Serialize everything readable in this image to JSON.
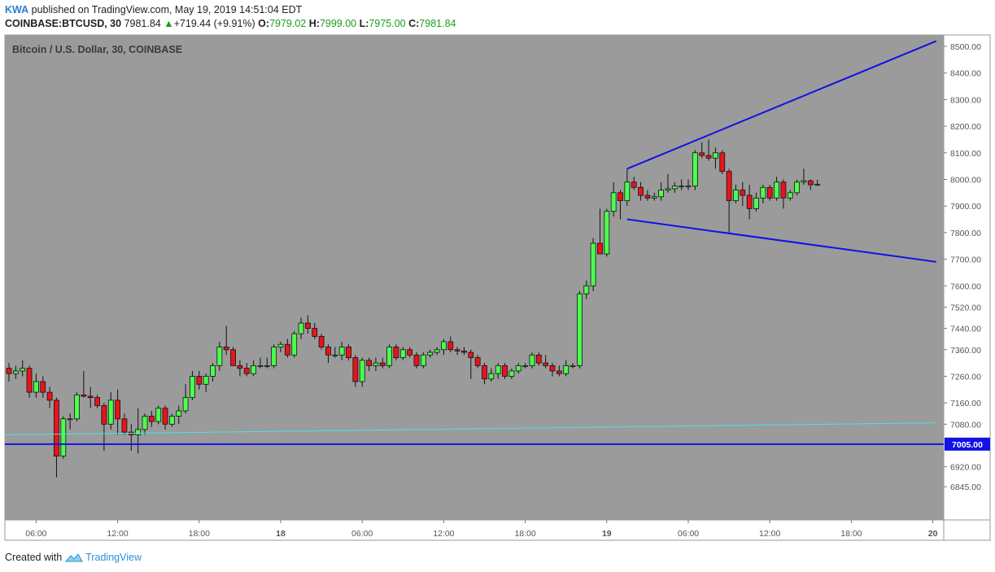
{
  "header": {
    "author": "KWA",
    "published_text": "published on TradingView.com, May 19, 2019 14:51:04 EDT",
    "symbol": "COINBASE:BTCUSD, 30",
    "last": "7981.84",
    "change": "+719.44 (+9.91%)",
    "o_label": "O:",
    "o_value": "7979.02",
    "h_label": "H:",
    "h_value": "7999.00",
    "l_label": "L:",
    "l_value": "7975.00",
    "c_label": "C:",
    "c_value": "7981.84"
  },
  "footer": {
    "created_with": "Created with",
    "brand": "TradingView"
  },
  "colors": {
    "pane_bg": "#9b9b9b",
    "up_candle": "#4cff4c",
    "down_candle": "#e8141c",
    "channel_line": "#1212e6",
    "support_line": "#1212e6",
    "trend_line": "#4fe0e0",
    "price_tag_bg": "#1212e6"
  },
  "chart_data": {
    "type": "candlestick",
    "title": "Bitcoin / U.S. Dollar, 30, COINBASE",
    "interval_minutes": 30,
    "ylim": [
      6820,
      8520
    ],
    "y_ticks": [
      8500,
      8400,
      8300,
      8200,
      8100,
      8000,
      7900,
      7800,
      7700,
      7600,
      7520,
      7440,
      7360,
      7260,
      7160,
      7080,
      6920,
      6845
    ],
    "y_tick_labels": [
      "8500.00",
      "8400.00",
      "8300.00",
      "8200.00",
      "8100.00",
      "8000.00",
      "7900.00",
      "7800.00",
      "7700.00",
      "7600.00",
      "7520.00",
      "7440.00",
      "7360.00",
      "7260.00",
      "7160.00",
      "7080.00",
      "6920.00",
      "6845.00"
    ],
    "x_tick_labels": [
      "06:00",
      "12:00",
      "18:00",
      "18",
      "06:00",
      "12:00",
      "18:00",
      "19",
      "06:00",
      "12:00",
      "18:00",
      "20"
    ],
    "x_tick_index": [
      4,
      16,
      28,
      40,
      52,
      64,
      76,
      88,
      100,
      112,
      124,
      136
    ],
    "candles": [
      {
        "o": 7290,
        "h": 7310,
        "l": 7240,
        "c": 7270
      },
      {
        "o": 7270,
        "h": 7300,
        "l": 7250,
        "c": 7280
      },
      {
        "o": 7280,
        "h": 7320,
        "l": 7260,
        "c": 7290
      },
      {
        "o": 7290,
        "h": 7300,
        "l": 7180,
        "c": 7200
      },
      {
        "o": 7200,
        "h": 7270,
        "l": 7180,
        "c": 7240
      },
      {
        "o": 7240,
        "h": 7260,
        "l": 7180,
        "c": 7200
      },
      {
        "o": 7200,
        "h": 7220,
        "l": 7140,
        "c": 7170
      },
      {
        "o": 7170,
        "h": 7180,
        "l": 6880,
        "c": 6960
      },
      {
        "o": 6960,
        "h": 7110,
        "l": 6950,
        "c": 7100
      },
      {
        "o": 7100,
        "h": 7120,
        "l": 7060,
        "c": 7100
      },
      {
        "o": 7100,
        "h": 7200,
        "l": 7090,
        "c": 7190
      },
      {
        "o": 7190,
        "h": 7280,
        "l": 7180,
        "c": 7185
      },
      {
        "o": 7185,
        "h": 7220,
        "l": 7140,
        "c": 7180
      },
      {
        "o": 7180,
        "h": 7190,
        "l": 7140,
        "c": 7150
      },
      {
        "o": 7150,
        "h": 7160,
        "l": 6980,
        "c": 7080
      },
      {
        "o": 7080,
        "h": 7200,
        "l": 7060,
        "c": 7170
      },
      {
        "o": 7170,
        "h": 7210,
        "l": 7040,
        "c": 7100
      },
      {
        "o": 7100,
        "h": 7120,
        "l": 7040,
        "c": 7050
      },
      {
        "o": 7050,
        "h": 7080,
        "l": 6980,
        "c": 7040
      },
      {
        "o": 7040,
        "h": 7140,
        "l": 6970,
        "c": 7060
      },
      {
        "o": 7060,
        "h": 7120,
        "l": 7040,
        "c": 7110
      },
      {
        "o": 7110,
        "h": 7130,
        "l": 7070,
        "c": 7090
      },
      {
        "o": 7090,
        "h": 7150,
        "l": 7080,
        "c": 7140
      },
      {
        "o": 7140,
        "h": 7150,
        "l": 7060,
        "c": 7080
      },
      {
        "o": 7080,
        "h": 7120,
        "l": 7070,
        "c": 7110
      },
      {
        "o": 7110,
        "h": 7150,
        "l": 7080,
        "c": 7130
      },
      {
        "o": 7130,
        "h": 7230,
        "l": 7120,
        "c": 7180
      },
      {
        "o": 7180,
        "h": 7280,
        "l": 7170,
        "c": 7260
      },
      {
        "o": 7260,
        "h": 7280,
        "l": 7210,
        "c": 7230
      },
      {
        "o": 7230,
        "h": 7270,
        "l": 7200,
        "c": 7260
      },
      {
        "o": 7260,
        "h": 7310,
        "l": 7240,
        "c": 7300
      },
      {
        "o": 7300,
        "h": 7390,
        "l": 7280,
        "c": 7370
      },
      {
        "o": 7370,
        "h": 7450,
        "l": 7340,
        "c": 7360
      },
      {
        "o": 7360,
        "h": 7370,
        "l": 7300,
        "c": 7300
      },
      {
        "o": 7300,
        "h": 7320,
        "l": 7260,
        "c": 7290
      },
      {
        "o": 7290,
        "h": 7310,
        "l": 7260,
        "c": 7270
      },
      {
        "o": 7270,
        "h": 7320,
        "l": 7260,
        "c": 7300
      },
      {
        "o": 7300,
        "h": 7330,
        "l": 7290,
        "c": 7300
      },
      {
        "o": 7300,
        "h": 7330,
        "l": 7290,
        "c": 7300
      },
      {
        "o": 7300,
        "h": 7380,
        "l": 7290,
        "c": 7370
      },
      {
        "o": 7370,
        "h": 7390,
        "l": 7350,
        "c": 7380
      },
      {
        "o": 7380,
        "h": 7400,
        "l": 7330,
        "c": 7340
      },
      {
        "o": 7340,
        "h": 7430,
        "l": 7330,
        "c": 7420
      },
      {
        "o": 7420,
        "h": 7480,
        "l": 7400,
        "c": 7460
      },
      {
        "o": 7460,
        "h": 7490,
        "l": 7420,
        "c": 7440
      },
      {
        "o": 7440,
        "h": 7460,
        "l": 7400,
        "c": 7410
      },
      {
        "o": 7410,
        "h": 7420,
        "l": 7360,
        "c": 7370
      },
      {
        "o": 7370,
        "h": 7380,
        "l": 7310,
        "c": 7340
      },
      {
        "o": 7340,
        "h": 7370,
        "l": 7330,
        "c": 7340
      },
      {
        "o": 7340,
        "h": 7390,
        "l": 7320,
        "c": 7370
      },
      {
        "o": 7370,
        "h": 7380,
        "l": 7320,
        "c": 7330
      },
      {
        "o": 7330,
        "h": 7340,
        "l": 7220,
        "c": 7240
      },
      {
        "o": 7240,
        "h": 7330,
        "l": 7220,
        "c": 7320
      },
      {
        "o": 7320,
        "h": 7330,
        "l": 7280,
        "c": 7300
      },
      {
        "o": 7300,
        "h": 7330,
        "l": 7280,
        "c": 7310
      },
      {
        "o": 7310,
        "h": 7330,
        "l": 7290,
        "c": 7300
      },
      {
        "o": 7300,
        "h": 7380,
        "l": 7290,
        "c": 7370
      },
      {
        "o": 7370,
        "h": 7380,
        "l": 7320,
        "c": 7330
      },
      {
        "o": 7330,
        "h": 7370,
        "l": 7320,
        "c": 7360
      },
      {
        "o": 7360,
        "h": 7370,
        "l": 7330,
        "c": 7340
      },
      {
        "o": 7340,
        "h": 7350,
        "l": 7290,
        "c": 7300
      },
      {
        "o": 7300,
        "h": 7350,
        "l": 7290,
        "c": 7340
      },
      {
        "o": 7340,
        "h": 7360,
        "l": 7330,
        "c": 7350
      },
      {
        "o": 7350,
        "h": 7370,
        "l": 7340,
        "c": 7360
      },
      {
        "o": 7360,
        "h": 7400,
        "l": 7340,
        "c": 7390
      },
      {
        "o": 7390,
        "h": 7410,
        "l": 7350,
        "c": 7360
      },
      {
        "o": 7360,
        "h": 7370,
        "l": 7340,
        "c": 7355
      },
      {
        "o": 7355,
        "h": 7370,
        "l": 7340,
        "c": 7350
      },
      {
        "o": 7350,
        "h": 7360,
        "l": 7250,
        "c": 7330
      },
      {
        "o": 7330,
        "h": 7340,
        "l": 7290,
        "c": 7300
      },
      {
        "o": 7300,
        "h": 7310,
        "l": 7230,
        "c": 7250
      },
      {
        "o": 7250,
        "h": 7290,
        "l": 7240,
        "c": 7270
      },
      {
        "o": 7270,
        "h": 7310,
        "l": 7250,
        "c": 7300
      },
      {
        "o": 7300,
        "h": 7310,
        "l": 7250,
        "c": 7260
      },
      {
        "o": 7260,
        "h": 7290,
        "l": 7250,
        "c": 7280
      },
      {
        "o": 7280,
        "h": 7310,
        "l": 7270,
        "c": 7300
      },
      {
        "o": 7300,
        "h": 7310,
        "l": 7290,
        "c": 7300
      },
      {
        "o": 7300,
        "h": 7350,
        "l": 7290,
        "c": 7340
      },
      {
        "o": 7340,
        "h": 7350,
        "l": 7300,
        "c": 7310
      },
      {
        "o": 7310,
        "h": 7340,
        "l": 7290,
        "c": 7300
      },
      {
        "o": 7300,
        "h": 7310,
        "l": 7260,
        "c": 7280
      },
      {
        "o": 7280,
        "h": 7300,
        "l": 7260,
        "c": 7270
      },
      {
        "o": 7270,
        "h": 7320,
        "l": 7260,
        "c": 7300
      },
      {
        "o": 7300,
        "h": 7310,
        "l": 7290,
        "c": 7300
      },
      {
        "o": 7300,
        "h": 7580,
        "l": 7290,
        "c": 7570
      },
      {
        "o": 7570,
        "h": 7620,
        "l": 7550,
        "c": 7600
      },
      {
        "o": 7600,
        "h": 7780,
        "l": 7580,
        "c": 7760
      },
      {
        "o": 7760,
        "h": 7890,
        "l": 7720,
        "c": 7720
      },
      {
        "o": 7720,
        "h": 7890,
        "l": 7710,
        "c": 7880
      },
      {
        "o": 7880,
        "h": 7990,
        "l": 7860,
        "c": 7950
      },
      {
        "o": 7950,
        "h": 7960,
        "l": 7850,
        "c": 7920
      },
      {
        "o": 7920,
        "h": 8040,
        "l": 7900,
        "c": 7990
      },
      {
        "o": 7990,
        "h": 8010,
        "l": 7960,
        "c": 7970
      },
      {
        "o": 7970,
        "h": 7990,
        "l": 7920,
        "c": 7940
      },
      {
        "o": 7940,
        "h": 7960,
        "l": 7920,
        "c": 7930
      },
      {
        "o": 7930,
        "h": 7950,
        "l": 7920,
        "c": 7935
      },
      {
        "o": 7935,
        "h": 7990,
        "l": 7920,
        "c": 7960
      },
      {
        "o": 7960,
        "h": 8020,
        "l": 7950,
        "c": 7965
      },
      {
        "o": 7965,
        "h": 7990,
        "l": 7950,
        "c": 7975
      },
      {
        "o": 7975,
        "h": 8000,
        "l": 7960,
        "c": 7975
      },
      {
        "o": 7975,
        "h": 8000,
        "l": 7960,
        "c": 7975
      },
      {
        "o": 7975,
        "h": 8110,
        "l": 7960,
        "c": 8100
      },
      {
        "o": 8100,
        "h": 8140,
        "l": 8080,
        "c": 8090
      },
      {
        "o": 8090,
        "h": 8150,
        "l": 8070,
        "c": 8080
      },
      {
        "o": 8080,
        "h": 8120,
        "l": 8040,
        "c": 8100
      },
      {
        "o": 8100,
        "h": 8110,
        "l": 8020,
        "c": 8030
      },
      {
        "o": 8030,
        "h": 8040,
        "l": 7800,
        "c": 7920
      },
      {
        "o": 7920,
        "h": 7980,
        "l": 7910,
        "c": 7960
      },
      {
        "o": 7960,
        "h": 7990,
        "l": 7900,
        "c": 7940
      },
      {
        "o": 7940,
        "h": 7980,
        "l": 7850,
        "c": 7890
      },
      {
        "o": 7890,
        "h": 7950,
        "l": 7880,
        "c": 7930
      },
      {
        "o": 7930,
        "h": 7980,
        "l": 7910,
        "c": 7970
      },
      {
        "o": 7970,
        "h": 7980,
        "l": 7920,
        "c": 7930
      },
      {
        "o": 7930,
        "h": 8010,
        "l": 7920,
        "c": 7990
      },
      {
        "o": 7990,
        "h": 8000,
        "l": 7890,
        "c": 7930
      },
      {
        "o": 7930,
        "h": 7960,
        "l": 7920,
        "c": 7950
      },
      {
        "o": 7950,
        "h": 8000,
        "l": 7940,
        "c": 7990
      },
      {
        "o": 7990,
        "h": 8040,
        "l": 7980,
        "c": 7995
      },
      {
        "o": 7995,
        "h": 8000,
        "l": 7960,
        "c": 7980
      },
      {
        "o": 7979,
        "h": 7999,
        "l": 7975,
        "c": 7982
      }
    ],
    "drawings": [
      {
        "name": "channel-upper-line",
        "from": {
          "i": 91,
          "p": 8040
        },
        "to": {
          "i": 136.5,
          "p": 8520
        },
        "color": "#1212e6"
      },
      {
        "name": "channel-lower-line",
        "from": {
          "i": 91,
          "p": 7850
        },
        "to": {
          "i": 136.5,
          "p": 7690
        },
        "color": "#1212e6"
      },
      {
        "name": "support-horizontal-line",
        "price": 7005,
        "label": "7005.00",
        "color": "#1212e6"
      },
      {
        "name": "ascending-trend-line",
        "from": {
          "i": -0.5,
          "p": 7040
        },
        "to": {
          "i": 136.5,
          "p": 7085
        },
        "color": "#4fe0e0"
      }
    ]
  }
}
